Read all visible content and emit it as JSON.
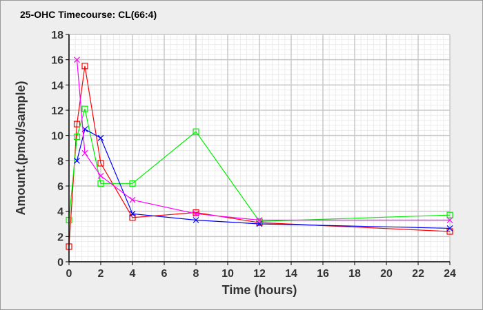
{
  "chart_data": {
    "type": "line",
    "title": "25-OHC Timecourse: CL(66:4)",
    "xlabel": "Time (hours)",
    "ylabel": "Amount.(pmol/sample)",
    "xlim": [
      0,
      24
    ],
    "ylim": [
      0,
      18
    ],
    "xticks": [
      0,
      2,
      4,
      6,
      8,
      10,
      12,
      14,
      16,
      18,
      20,
      22,
      24
    ],
    "yticks": [
      0,
      2,
      4,
      6,
      8,
      10,
      12,
      14,
      16,
      18
    ],
    "grid": true,
    "series": [
      {
        "name": "red",
        "color": "#ff0000",
        "marker": "square",
        "x": [
          0,
          0.5,
          1,
          2,
          4,
          8,
          12,
          24
        ],
        "y": [
          1.2,
          10.9,
          15.5,
          7.8,
          3.5,
          3.9,
          3.1,
          2.4
        ]
      },
      {
        "name": "green",
        "color": "#00ee00",
        "marker": "square",
        "x": [
          0,
          0.5,
          1,
          2,
          4,
          8,
          12,
          24
        ],
        "y": [
          3.3,
          9.9,
          12.1,
          6.2,
          6.2,
          10.3,
          3.2,
          3.7
        ]
      },
      {
        "name": "blue",
        "color": "#0000ff",
        "marker": "x",
        "x": [
          0.5,
          1,
          2,
          4,
          8,
          12,
          24
        ],
        "y": [
          8.0,
          10.5,
          9.8,
          3.8,
          3.3,
          3.0,
          2.65
        ]
      },
      {
        "name": "magenta",
        "color": "#ff00ff",
        "marker": "x",
        "x": [
          0.5,
          1,
          2,
          4,
          8,
          12,
          24
        ],
        "y": [
          16.0,
          8.6,
          6.8,
          4.9,
          3.8,
          3.3,
          3.3
        ]
      }
    ]
  }
}
